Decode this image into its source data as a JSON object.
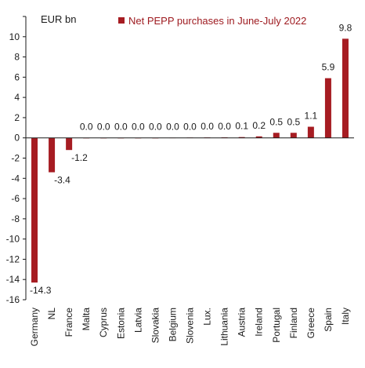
{
  "chart_data": {
    "type": "bar",
    "unit_label": "EUR bn",
    "legend": {
      "name": "Net PEPP purchases in June-July 2022",
      "placement": "top",
      "color": "#a61c22"
    },
    "bar_color": "#a61c22",
    "ylim": [
      -16,
      12
    ],
    "yticks": [
      12,
      10,
      8,
      6,
      4,
      2,
      0,
      -2,
      -4,
      -6,
      -8,
      -10,
      -12,
      -14,
      -16
    ],
    "ytick_labels": [
      "",
      "10",
      "8",
      "6",
      "4",
      "2",
      "0",
      "-2",
      "-4",
      "-6",
      "-8",
      "-10",
      "-12",
      "-14",
      "-16"
    ],
    "categories": [
      "Germany",
      "NL",
      "France",
      "Malta",
      "Cyprus",
      "Estonia",
      "Latvia",
      "Slovakia",
      "Belgium",
      "Slovenia",
      "Lux.",
      "Lithuania",
      "Austria",
      "Ireland",
      "Portugal",
      "Finland",
      "Greece",
      "Spain",
      "Italy"
    ],
    "values": [
      -14.3,
      -3.4,
      -1.2,
      0.0,
      0.0,
      0.0,
      0.0,
      0.0,
      0.02,
      0.03,
      0.04,
      0.05,
      0.08,
      0.15,
      0.5,
      0.5,
      1.1,
      5.9,
      9.8
    ],
    "data_labels": [
      "-14.3",
      "-3.4",
      "-1.2",
      "0.0",
      "0.0",
      "0.0",
      "0.0",
      "0.0",
      "0.0",
      "0.0",
      "0.0",
      "0.0",
      "0.1",
      "0.2",
      "0.5",
      "0.5",
      "1.1",
      "5.9",
      "9.8"
    ],
    "xlabel": "",
    "ylabel": ""
  }
}
